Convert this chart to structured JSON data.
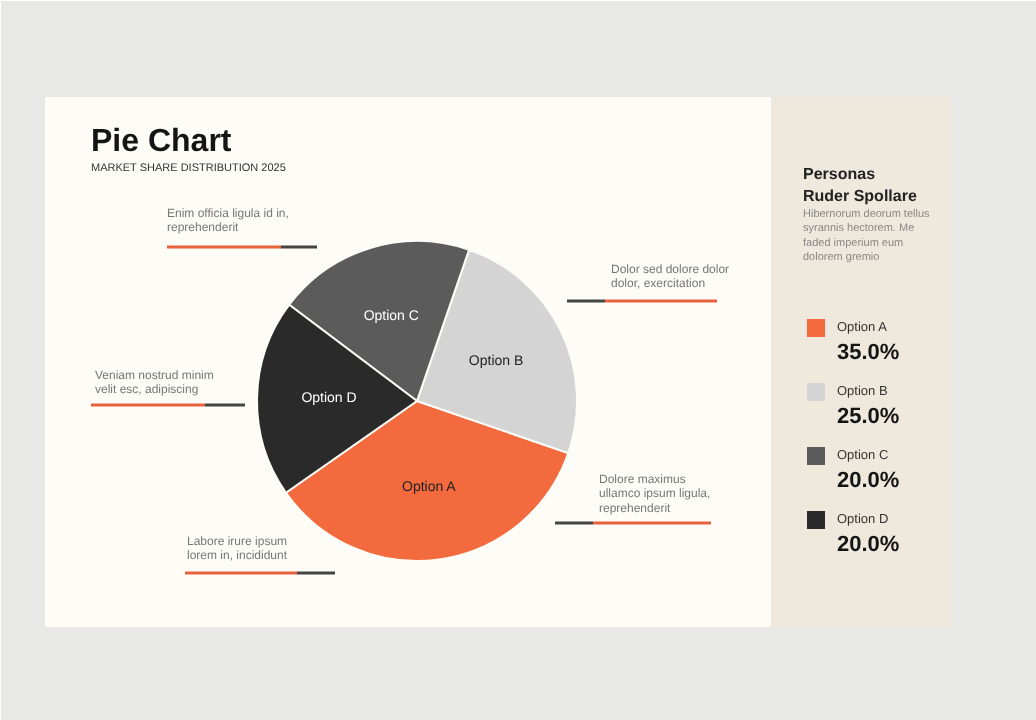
{
  "chart_data": {
    "type": "pie",
    "title": "Pie Chart",
    "subtitle": "MARKET SHARE DISTRIBUTION 2025",
    "categories": [
      "Option A",
      "Option B",
      "Option C",
      "Option D"
    ],
    "values": [
      35.0,
      25.0,
      20.0,
      20.0
    ],
    "colors": [
      "#f26a3d",
      "#d4d4d4",
      "#5b5b5b",
      "#2a2a2a"
    ],
    "value_labels": [
      "35.0%",
      "25.0%",
      "20.0%",
      "20.0%"
    ],
    "legend": "right",
    "annotations": [
      "Enim officia ligula id in,\nreprehenderit",
      "Dolor sed dolore dolor\ndolor, exercitation",
      "Veniam nostrud minim\nvelit esc, adipiscing",
      "Dolore maximus\nullamco ipsum ligula,\nreprehenderit",
      "Labore irure ipsum\nlorem in, incididunt",
      "Personas\nRuder Spollare",
      "Hibernorum deorum tellus\nsyrannis hectorem. Me\nfaded imperium eum\ndolorem gremio"
    ]
  }
}
